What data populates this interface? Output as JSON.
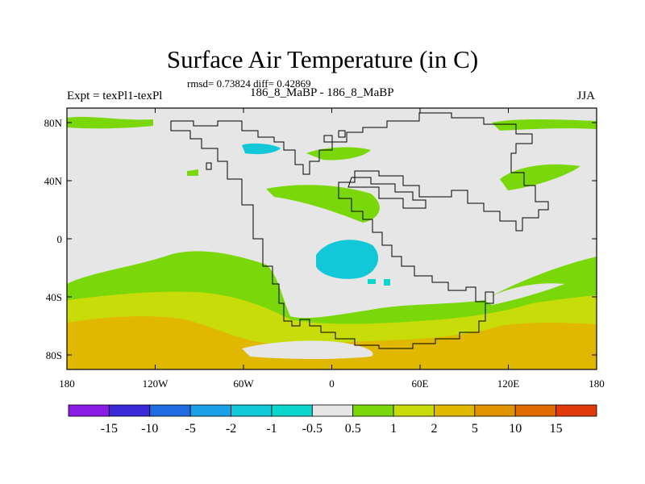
{
  "title": "Surface Air Temperature (in C)",
  "stats": "rmsd= 0.73824 diff= 0.42869",
  "experiment": "Expt = texPl1-texPl",
  "runs": "186_8_MaBP - 186_8_MaBP",
  "season": "JJA",
  "lat_ticks": [
    {
      "label": "80N",
      "value": 80
    },
    {
      "label": "40N",
      "value": 40
    },
    {
      "label": "0",
      "value": 0
    },
    {
      "label": "40S",
      "value": -40
    },
    {
      "label": "80S",
      "value": -80
    }
  ],
  "lon_ticks": [
    {
      "label": "180",
      "value": -180
    },
    {
      "label": "120W",
      "value": -120
    },
    {
      "label": "60W",
      "value": -60
    },
    {
      "label": "0",
      "value": 0
    },
    {
      "label": "60E",
      "value": 60
    },
    {
      "label": "120E",
      "value": 120
    },
    {
      "label": "180",
      "value": 180
    }
  ],
  "colorbar": {
    "colors": [
      "#8b1be6",
      "#3a2ad8",
      "#1e6ce0",
      "#1aa0e6",
      "#12c8d8",
      "#0ad6cc",
      "#e6e6e6",
      "#7ad80a",
      "#c8dc0a",
      "#e0b800",
      "#e09400",
      "#e06c00",
      "#e03a0a"
    ],
    "labels": [
      "-15",
      "-10",
      "-5",
      "-2",
      "-1",
      "-0.5",
      "0.5",
      "1",
      "2",
      "5",
      "10",
      "15"
    ]
  }
}
